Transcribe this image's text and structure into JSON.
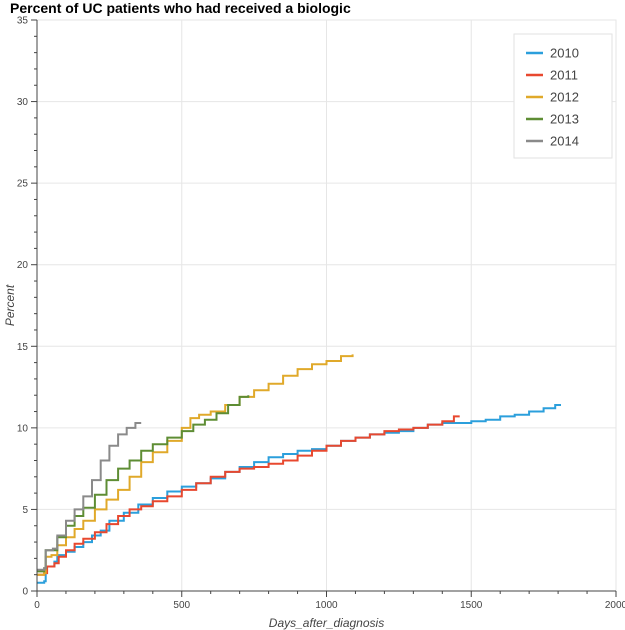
{
  "chart_data": {
    "type": "line",
    "title": "Percent of UC patients who had received a biologic",
    "xlabel": "Days_after_diagnosis",
    "ylabel": "Percent",
    "xlim": [
      0,
      2000
    ],
    "ylim": [
      0,
      35
    ],
    "x_ticks": [
      0,
      500,
      1000,
      1500,
      2000
    ],
    "y_ticks": [
      0,
      5,
      10,
      15,
      20,
      25,
      30,
      35
    ],
    "grid": true,
    "legend_position": "top-right",
    "series": [
      {
        "name": "2010",
        "color": "#2b9fdc",
        "points": [
          [
            0,
            0.5
          ],
          [
            25,
            0.6
          ],
          [
            30,
            1.5
          ],
          [
            60,
            1.8
          ],
          [
            70,
            2.2
          ],
          [
            100,
            2.4
          ],
          [
            130,
            2.7
          ],
          [
            160,
            3.0
          ],
          [
            190,
            3.4
          ],
          [
            220,
            3.7
          ],
          [
            250,
            4.3
          ],
          [
            300,
            4.8
          ],
          [
            350,
            5.3
          ],
          [
            400,
            5.7
          ],
          [
            450,
            6.1
          ],
          [
            500,
            6.4
          ],
          [
            550,
            6.6
          ],
          [
            600,
            6.9
          ],
          [
            650,
            7.3
          ],
          [
            700,
            7.6
          ],
          [
            750,
            7.9
          ],
          [
            800,
            8.2
          ],
          [
            850,
            8.4
          ],
          [
            900,
            8.6
          ],
          [
            950,
            8.7
          ],
          [
            1000,
            8.9
          ],
          [
            1050,
            9.2
          ],
          [
            1100,
            9.4
          ],
          [
            1150,
            9.6
          ],
          [
            1200,
            9.7
          ],
          [
            1250,
            9.8
          ],
          [
            1300,
            10.0
          ],
          [
            1350,
            10.2
          ],
          [
            1400,
            10.3
          ],
          [
            1450,
            10.3
          ],
          [
            1500,
            10.4
          ],
          [
            1550,
            10.5
          ],
          [
            1600,
            10.7
          ],
          [
            1650,
            10.8
          ],
          [
            1700,
            11.0
          ],
          [
            1750,
            11.2
          ],
          [
            1790,
            11.4
          ],
          [
            1810,
            11.4
          ]
        ]
      },
      {
        "name": "2011",
        "color": "#e8482f",
        "points": [
          [
            0,
            1.0
          ],
          [
            25,
            1.1
          ],
          [
            35,
            1.5
          ],
          [
            60,
            1.7
          ],
          [
            75,
            2.1
          ],
          [
            100,
            2.5
          ],
          [
            130,
            2.9
          ],
          [
            160,
            3.2
          ],
          [
            200,
            3.6
          ],
          [
            240,
            4.1
          ],
          [
            280,
            4.6
          ],
          [
            320,
            5.0
          ],
          [
            360,
            5.2
          ],
          [
            400,
            5.5
          ],
          [
            450,
            5.8
          ],
          [
            500,
            6.2
          ],
          [
            550,
            6.6
          ],
          [
            600,
            7.0
          ],
          [
            650,
            7.3
          ],
          [
            700,
            7.5
          ],
          [
            750,
            7.6
          ],
          [
            800,
            7.8
          ],
          [
            850,
            8.0
          ],
          [
            900,
            8.3
          ],
          [
            950,
            8.6
          ],
          [
            1000,
            8.9
          ],
          [
            1050,
            9.2
          ],
          [
            1100,
            9.4
          ],
          [
            1150,
            9.6
          ],
          [
            1200,
            9.8
          ],
          [
            1250,
            9.9
          ],
          [
            1300,
            10.0
          ],
          [
            1350,
            10.2
          ],
          [
            1400,
            10.4
          ],
          [
            1440,
            10.7
          ],
          [
            1460,
            10.7
          ]
        ]
      },
      {
        "name": "2012",
        "color": "#e0a92a",
        "points": [
          [
            0,
            1.0
          ],
          [
            25,
            1.1
          ],
          [
            30,
            2.1
          ],
          [
            50,
            2.2
          ],
          [
            70,
            2.8
          ],
          [
            100,
            3.3
          ],
          [
            130,
            3.8
          ],
          [
            160,
            4.3
          ],
          [
            200,
            5.0
          ],
          [
            240,
            5.6
          ],
          [
            280,
            6.2
          ],
          [
            320,
            7.0
          ],
          [
            360,
            7.9
          ],
          [
            400,
            8.5
          ],
          [
            450,
            9.2
          ],
          [
            500,
            10.0
          ],
          [
            530,
            10.6
          ],
          [
            560,
            10.8
          ],
          [
            600,
            11.0
          ],
          [
            650,
            11.4
          ],
          [
            700,
            11.9
          ],
          [
            750,
            12.3
          ],
          [
            800,
            12.7
          ],
          [
            850,
            13.2
          ],
          [
            900,
            13.6
          ],
          [
            950,
            13.9
          ],
          [
            1000,
            14.1
          ],
          [
            1050,
            14.4
          ],
          [
            1090,
            14.5
          ]
        ]
      },
      {
        "name": "2013",
        "color": "#5e8d34",
        "points": [
          [
            0,
            1.2
          ],
          [
            25,
            1.4
          ],
          [
            30,
            2.5
          ],
          [
            55,
            2.5
          ],
          [
            70,
            3.3
          ],
          [
            100,
            4.0
          ],
          [
            130,
            4.6
          ],
          [
            160,
            5.1
          ],
          [
            200,
            5.9
          ],
          [
            240,
            6.8
          ],
          [
            280,
            7.5
          ],
          [
            320,
            8.0
          ],
          [
            360,
            8.6
          ],
          [
            400,
            9.0
          ],
          [
            450,
            9.4
          ],
          [
            500,
            9.8
          ],
          [
            540,
            10.2
          ],
          [
            580,
            10.5
          ],
          [
            620,
            10.9
          ],
          [
            660,
            11.4
          ],
          [
            700,
            11.9
          ],
          [
            730,
            12.0
          ]
        ]
      },
      {
        "name": "2014",
        "color": "#8a8a8a",
        "points": [
          [
            0,
            1.3
          ],
          [
            25,
            1.4
          ],
          [
            30,
            2.5
          ],
          [
            55,
            2.6
          ],
          [
            70,
            3.4
          ],
          [
            100,
            4.3
          ],
          [
            130,
            5.0
          ],
          [
            160,
            5.8
          ],
          [
            190,
            6.8
          ],
          [
            220,
            8.0
          ],
          [
            250,
            8.9
          ],
          [
            280,
            9.6
          ],
          [
            310,
            10.0
          ],
          [
            340,
            10.3
          ],
          [
            360,
            10.3
          ]
        ]
      }
    ]
  }
}
